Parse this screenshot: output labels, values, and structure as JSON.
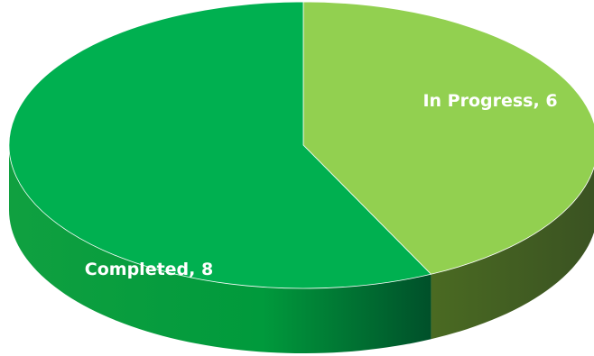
{
  "chart_data": {
    "type": "pie",
    "title": "",
    "categories": [
      "In Progress",
      "Completed"
    ],
    "values": [
      6,
      8
    ],
    "labels": [
      "In Progress, 6",
      "Completed, 8"
    ],
    "colors": [
      "#92d050",
      "#00b050"
    ],
    "legend": "none",
    "style": "3d"
  }
}
